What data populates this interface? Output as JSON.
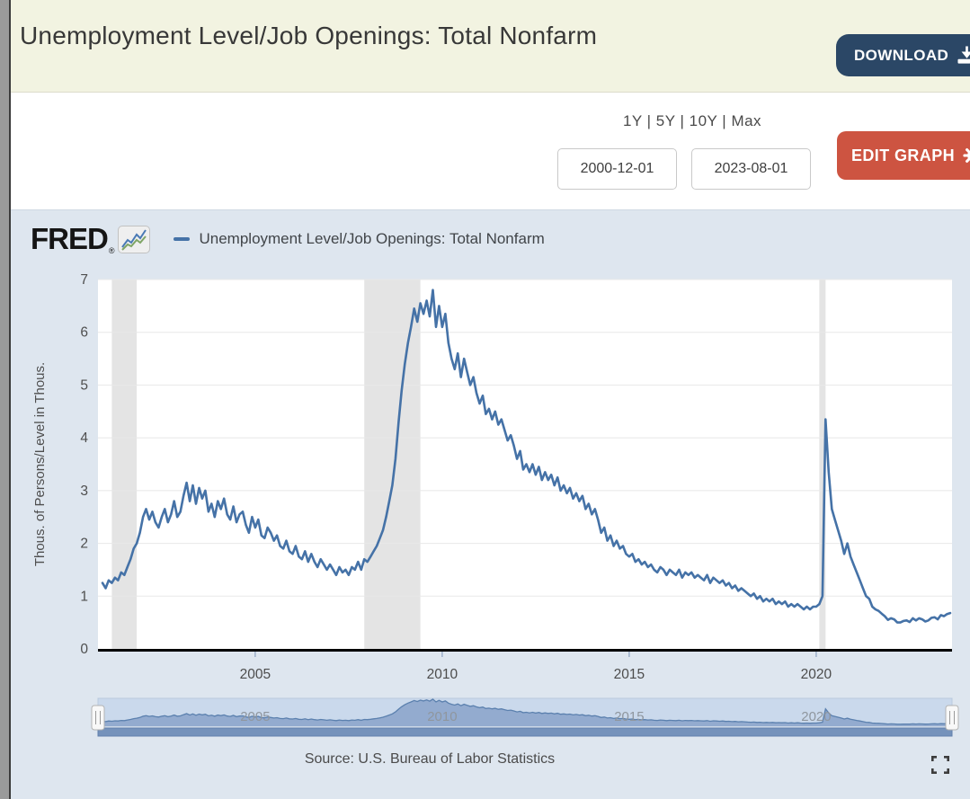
{
  "header": {
    "title": "Unemployment Level/Job Openings: Total Nonfarm",
    "download_label": "DOWNLOAD"
  },
  "controls": {
    "ranges_label": "1Y | 5Y | 10Y | Max",
    "start_date": "2000-12-01",
    "end_date": "2023-08-01",
    "edit_graph_label": "EDIT GRAPH"
  },
  "graph": {
    "brand": "FRED",
    "registered_mark": "®",
    "legend_label": "Unemployment Level/Job Openings: Total Nonfarm",
    "source": "Source: U.S. Bureau of Labor Statistics"
  },
  "colors": {
    "header_bg": "#f2f3e1",
    "download_bg": "#2b4766",
    "edit_graph_bg": "#cd5441",
    "panel_bg": "#dee6ef",
    "plot_bg": "#ffffff",
    "recession_band": "#e4e4e4",
    "gridline": "#e8e8e8",
    "line": "#4572a7",
    "nav_band_bg": "#cad9ec",
    "nav_area_fill": "#93abcf",
    "nav_line": "#5b80ae",
    "scrollbar": "#7592bb"
  },
  "chart_data": {
    "type": "line",
    "title": "Unemployment Level/Job Openings: Total Nonfarm",
    "ylabel": "Thous. of Persons/Level in Thous.",
    "ylim": [
      0,
      7
    ],
    "yticks": [
      0,
      1,
      2,
      3,
      4,
      5,
      6,
      7
    ],
    "xtick_years": [
      2005,
      2010,
      2015,
      2020
    ],
    "x_start": "2000-12",
    "x_end": "2023-08",
    "frequency": "monthly",
    "grid": "horizontal",
    "legend_position": "top",
    "recession_bands": [
      [
        "2001-03",
        "2001-11"
      ],
      [
        "2007-12",
        "2009-06"
      ],
      [
        "2020-02",
        "2020-04"
      ]
    ],
    "values": [
      1.25,
      1.15,
      1.3,
      1.25,
      1.35,
      1.3,
      1.45,
      1.4,
      1.55,
      1.7,
      1.9,
      2.0,
      2.2,
      2.5,
      2.65,
      2.45,
      2.6,
      2.4,
      2.3,
      2.5,
      2.65,
      2.4,
      2.55,
      2.8,
      2.5,
      2.6,
      2.9,
      3.15,
      2.8,
      3.1,
      2.75,
      3.05,
      2.85,
      3.0,
      2.6,
      2.75,
      2.5,
      2.8,
      2.65,
      2.85,
      2.55,
      2.45,
      2.7,
      2.4,
      2.55,
      2.6,
      2.35,
      2.2,
      2.5,
      2.3,
      2.45,
      2.15,
      2.1,
      2.3,
      2.2,
      2.05,
      2.15,
      1.95,
      1.9,
      2.05,
      1.85,
      1.8,
      1.95,
      1.75,
      1.7,
      1.85,
      1.65,
      1.8,
      1.65,
      1.55,
      1.7,
      1.6,
      1.5,
      1.6,
      1.5,
      1.4,
      1.55,
      1.45,
      1.5,
      1.4,
      1.55,
      1.5,
      1.65,
      1.5,
      1.7,
      1.65,
      1.75,
      1.85,
      1.95,
      2.1,
      2.25,
      2.5,
      2.8,
      3.1,
      3.6,
      4.3,
      4.9,
      5.4,
      5.8,
      6.1,
      6.45,
      6.2,
      6.55,
      6.35,
      6.6,
      6.3,
      6.8,
      6.1,
      6.5,
      6.1,
      6.35,
      5.8,
      5.5,
      5.3,
      5.6,
      5.15,
      5.5,
      5.25,
      5.0,
      5.15,
      4.85,
      4.65,
      4.8,
      4.45,
      4.55,
      4.35,
      4.5,
      4.25,
      4.35,
      4.15,
      3.95,
      4.05,
      3.85,
      3.6,
      3.75,
      3.4,
      3.5,
      3.35,
      3.5,
      3.3,
      3.45,
      3.2,
      3.35,
      3.2,
      3.3,
      3.1,
      3.25,
      3.0,
      3.1,
      2.95,
      3.05,
      2.85,
      2.95,
      2.8,
      2.9,
      2.65,
      2.75,
      2.55,
      2.65,
      2.45,
      2.2,
      2.3,
      2.05,
      2.15,
      1.95,
      2.05,
      1.9,
      1.95,
      1.8,
      1.75,
      1.8,
      1.65,
      1.7,
      1.6,
      1.65,
      1.55,
      1.6,
      1.5,
      1.45,
      1.55,
      1.5,
      1.4,
      1.5,
      1.45,
      1.4,
      1.5,
      1.35,
      1.45,
      1.4,
      1.45,
      1.35,
      1.4,
      1.35,
      1.3,
      1.4,
      1.25,
      1.35,
      1.3,
      1.25,
      1.3,
      1.2,
      1.25,
      1.15,
      1.2,
      1.1,
      1.15,
      1.1,
      1.05,
      1.0,
      1.05,
      0.95,
      1.0,
      0.9,
      0.95,
      0.9,
      0.95,
      0.85,
      0.9,
      0.85,
      0.9,
      0.8,
      0.85,
      0.8,
      0.85,
      0.8,
      0.75,
      0.8,
      0.75,
      0.8,
      0.8,
      0.85,
      1.0,
      4.35,
      3.35,
      2.65,
      2.45,
      2.25,
      2.05,
      1.8,
      2.0,
      1.75,
      1.6,
      1.45,
      1.3,
      1.15,
      1.0,
      0.95,
      0.8,
      0.75,
      0.72,
      0.67,
      0.62,
      0.55,
      0.58,
      0.56,
      0.5,
      0.5,
      0.53,
      0.54,
      0.51,
      0.58,
      0.54,
      0.58,
      0.56,
      0.52,
      0.54,
      0.59,
      0.6,
      0.56,
      0.64,
      0.62,
      0.66,
      0.68
    ]
  }
}
